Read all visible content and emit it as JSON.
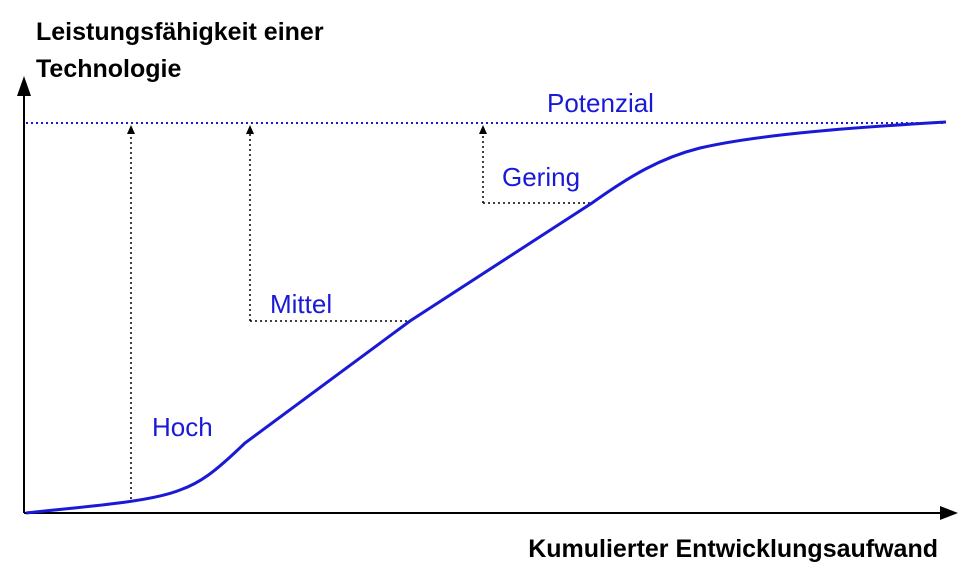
{
  "y_axis_title_line1": "Leistungsfähigkeit einer",
  "y_axis_title_line2": "Technologie",
  "x_axis_title": "Kumulierter Entwicklungsaufwand",
  "potential_label": "Potenzial",
  "gap_labels": {
    "high": "Hoch",
    "medium": "Mittel",
    "low": "Gering"
  },
  "colors": {
    "curve": "#1a1ad6",
    "labels": "#1a1ad6",
    "axes": "#000000",
    "dotted_guides": "#000000",
    "potential_line": "#1a1ad6"
  }
}
